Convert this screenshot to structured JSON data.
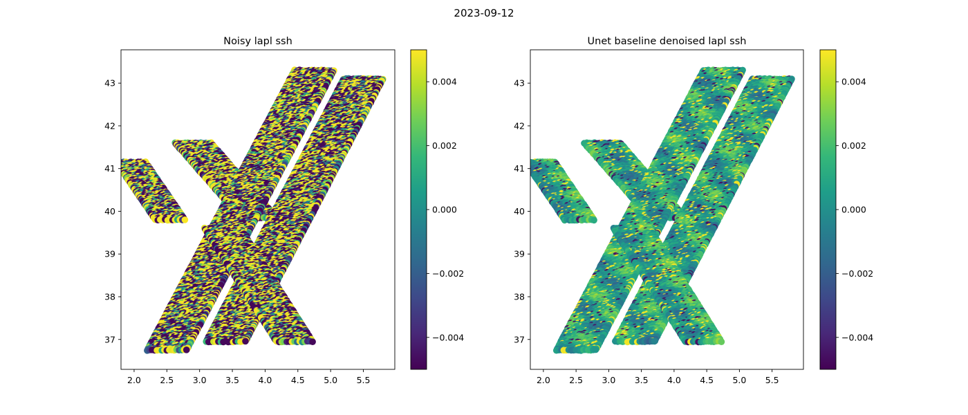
{
  "figure": {
    "suptitle": "2023-09-12"
  },
  "colormap": {
    "name": "viridis",
    "stops": [
      "#440154",
      "#482878",
      "#3e4989",
      "#31688e",
      "#26828e",
      "#1f9e89",
      "#35b779",
      "#6ece58",
      "#b5de2b",
      "#fde725"
    ]
  },
  "chart_data": [
    {
      "type": "scatter",
      "title": "Noisy lapl ssh",
      "xlabel": "",
      "ylabel": "",
      "xlim": [
        1.8,
        5.98
      ],
      "ylim": [
        36.3,
        43.78
      ],
      "xticks": [
        "2.0",
        "2.5",
        "3.0",
        "3.5",
        "4.0",
        "4.5",
        "5.0",
        "5.5"
      ],
      "xtick_values": [
        2.0,
        2.5,
        3.0,
        3.5,
        4.0,
        4.5,
        5.0,
        5.5
      ],
      "yticks": [
        "37",
        "38",
        "39",
        "40",
        "41",
        "42",
        "43"
      ],
      "ytick_values": [
        37,
        38,
        39,
        40,
        41,
        42,
        43
      ],
      "colorbar": {
        "range": [
          -0.005,
          0.005
        ],
        "ticks": [
          "0.004",
          "0.002",
          "0.000",
          "−0.002",
          "−0.004"
        ],
        "tick_values": [
          0.004,
          0.002,
          0.0,
          -0.002,
          -0.004
        ]
      },
      "noise_level": "high",
      "swaths": [
        {
          "name": "",
          "start": [
            1.95,
            41.15
          ],
          "end": [
            2.55,
            39.8
          ],
          "width_lon": 0.45
        },
        {
          "name": "",
          "start": [
            2.9,
            41.6
          ],
          "end": [
            3.9,
            39.85
          ],
          "width_lon": 0.55
        },
        {
          "name": "",
          "start": [
            4.75,
            43.3
          ],
          "end": [
            2.5,
            36.75
          ],
          "width_lon": 0.6
        },
        {
          "name": "",
          "start": [
            5.5,
            43.1
          ],
          "end": [
            3.4,
            36.95
          ],
          "width_lon": 0.6
        },
        {
          "name": "",
          "start": [
            3.35,
            39.6
          ],
          "end": [
            4.45,
            36.95
          ],
          "width_lon": 0.55
        }
      ]
    },
    {
      "type": "scatter",
      "title": "Unet baseline denoised lapl ssh",
      "xlabel": "",
      "ylabel": "",
      "xlim": [
        1.8,
        5.98
      ],
      "ylim": [
        36.3,
        43.78
      ],
      "xticks": [
        "2.0",
        "2.5",
        "3.0",
        "3.5",
        "4.0",
        "4.5",
        "5.0",
        "5.5"
      ],
      "xtick_values": [
        2.0,
        2.5,
        3.0,
        3.5,
        4.0,
        4.5,
        5.0,
        5.5
      ],
      "yticks": [
        "37",
        "38",
        "39",
        "40",
        "41",
        "42",
        "43"
      ],
      "ytick_values": [
        37,
        38,
        39,
        40,
        41,
        42,
        43
      ],
      "colorbar": {
        "range": [
          -0.005,
          0.005
        ],
        "ticks": [
          "0.004",
          "0.002",
          "0.000",
          "−0.002",
          "−0.004"
        ],
        "tick_values": [
          0.004,
          0.002,
          0.0,
          -0.002,
          -0.004
        ]
      },
      "noise_level": "low",
      "swaths": [
        {
          "name": "",
          "start": [
            1.95,
            41.15
          ],
          "end": [
            2.55,
            39.8
          ],
          "width_lon": 0.45
        },
        {
          "name": "",
          "start": [
            2.9,
            41.6
          ],
          "end": [
            3.9,
            39.85
          ],
          "width_lon": 0.55
        },
        {
          "name": "",
          "start": [
            4.75,
            43.3
          ],
          "end": [
            2.5,
            36.75
          ],
          "width_lon": 0.6
        },
        {
          "name": "",
          "start": [
            5.5,
            43.1
          ],
          "end": [
            3.4,
            36.95
          ],
          "width_lon": 0.6
        },
        {
          "name": "",
          "start": [
            3.35,
            39.6
          ],
          "end": [
            4.45,
            36.95
          ],
          "width_lon": 0.55
        }
      ]
    }
  ]
}
